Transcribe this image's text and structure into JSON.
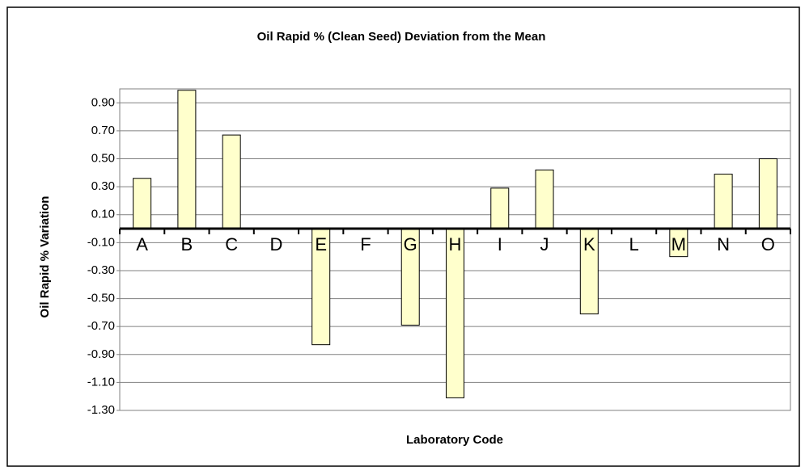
{
  "chart_data": {
    "type": "bar",
    "title": "Oil Rapid % (Clean Seed) Deviation from the Mean",
    "x_label": "Laboratory Code",
    "y_label": "Oil Rapid % Variation",
    "categories": [
      "A",
      "B",
      "C",
      "D",
      "E",
      "F",
      "G",
      "H",
      "I",
      "J",
      "K",
      "L",
      "M",
      "N",
      "O"
    ],
    "values": [
      0.36,
      0.99,
      0.67,
      0,
      -0.83,
      0,
      -0.69,
      -1.21,
      0.29,
      0.42,
      -0.61,
      0,
      -0.2,
      0.39,
      0.5
    ],
    "color": "#ffffcc",
    "ylim": [
      -1.3,
      1.0
    ],
    "yticks": [
      {
        "value": 0.9,
        "label": "0.90"
      },
      {
        "value": 0.7,
        "label": "0.70"
      },
      {
        "value": 0.5,
        "label": "0.50"
      },
      {
        "value": 0.3,
        "label": "0.30"
      },
      {
        "value": 0.1,
        "label": "0.10"
      },
      {
        "value": -0.1,
        "label": "-0.10"
      },
      {
        "value": -0.3,
        "label": "-0.30"
      },
      {
        "value": -0.5,
        "label": "-0.50"
      },
      {
        "value": -0.7,
        "label": "-0.70"
      },
      {
        "value": -0.9,
        "label": "-0.90"
      },
      {
        "value": -1.1,
        "label": "-1.10"
      },
      {
        "value": -1.3,
        "label": "-1.30"
      }
    ],
    "grid": true
  }
}
